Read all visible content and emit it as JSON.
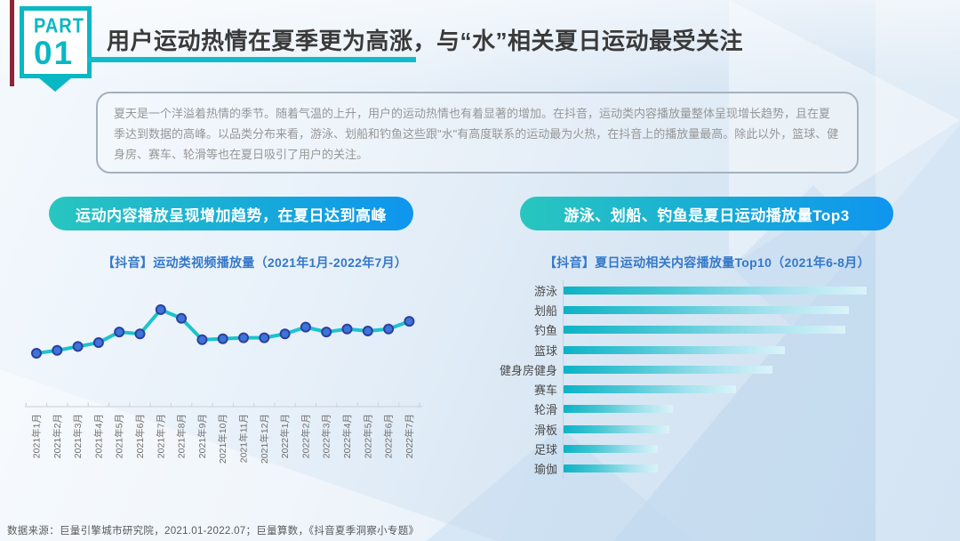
{
  "slide": {
    "badge": {
      "part": "PART",
      "number": "01"
    },
    "title": "用户运动热情在夏季更为高涨，与“水”相关夏日运动最受关注",
    "intro": "夏天是一个洋溢着热情的季节。随着气温的上升，用户的运动热情也有着显著的增加。在抖音，运动类内容播放量整体呈现增长趋势，且在夏季达到数据的高峰。以品类分布来看，游泳、划船和钓鱼这些跟\"水\"有高度联系的运动最为火热，在抖音上的播放量最高。除此以外，篮球、健身房、赛车、轮滑等也在夏日吸引了用户的关注。",
    "left_section": {
      "pill": "运动内容播放呈现增加趋势，在夏日达到高峰"
    },
    "right_section": {
      "pill": "游泳、划船、钓鱼是夏日运动播放量Top3"
    },
    "footer": "数据来源：巨量引擎城市研究院，2021.01-2022.07；巨量算数，《抖音夏季洞察小专题》"
  },
  "colors": {
    "teal": "#0ab7c4",
    "accent_red": "#8e2438",
    "line": "#1cc3cd",
    "marker_fill": "#3d74d8",
    "marker_stroke": "#2c3f9f",
    "axis": "#c9d0d9",
    "tick_label": "#6f6f6f",
    "chart_title_blue": "#3478c9",
    "pill_gradient_start": "#28c6bf",
    "pill_gradient_end": "#0f95ef",
    "bar_gradient_start": "#0cb3c6",
    "bar_gradient_end": "#dbf3f9"
  },
  "chart_data": [
    {
      "type": "line",
      "title": "【抖音】运动类视频播放量（2021年1月-2022年7月）",
      "x": [
        "2021年1月",
        "2021年2月",
        "2021年3月",
        "2021年4月",
        "2021年5月",
        "2021年6月",
        "2021年7月",
        "2021年8月",
        "2021年9月",
        "2021年10月",
        "2021年11月",
        "2021年12月",
        "2022年1月",
        "2022年2月",
        "2022年3月",
        "2022年4月",
        "2022年5月",
        "2022年6月",
        "2022年7月"
      ],
      "values": [
        55,
        58,
        62,
        66,
        77,
        75,
        100,
        91,
        69,
        70,
        71,
        71,
        75,
        82,
        77,
        80,
        78,
        80,
        88
      ],
      "xlabel": "",
      "ylabel": "",
      "ylim": [
        0,
        110
      ],
      "y_axis_hidden": true,
      "grid": false,
      "legend": "none",
      "tick_label_rotation": -90,
      "note": "values are relative play-volume index estimated from pixel heights; peak = 2021年7月 = 100"
    },
    {
      "type": "bar",
      "orientation": "horizontal",
      "title": "【抖音】夏日运动相关内容播放量Top10（2021年6-8月）",
      "categories": [
        "游泳",
        "划船",
        "钓鱼",
        "篮球",
        "健身房健身",
        "赛车",
        "轮滑",
        "滑板",
        "足球",
        "瑜伽"
      ],
      "values": [
        100,
        94,
        93,
        73,
        69,
        57,
        36,
        35,
        31,
        31
      ],
      "xlim": [
        0,
        100
      ],
      "value_axis_hidden": true,
      "grid": false,
      "legend": "none",
      "note": "values are relative play-volume estimated from bar lengths; 游泳 = 100"
    }
  ]
}
